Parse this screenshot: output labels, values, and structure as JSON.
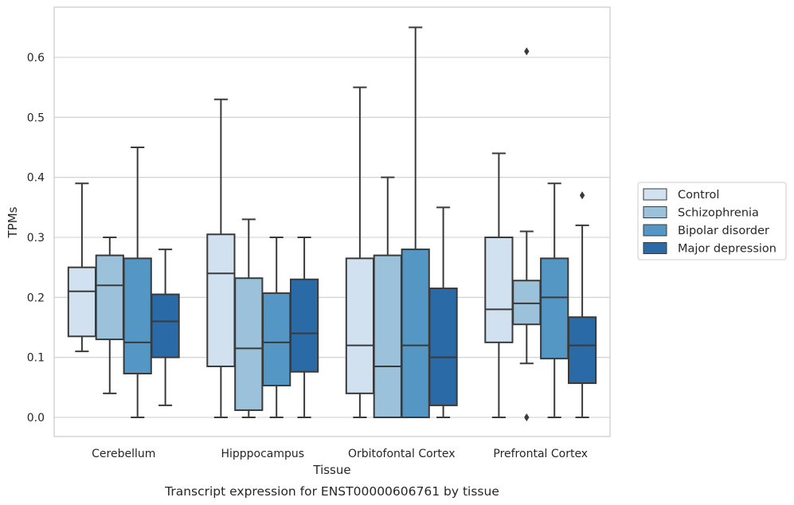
{
  "chart_data": {
    "type": "box",
    "caption": "Transcript expression for ENST00000606761 by tissue",
    "xlabel": "Tissue",
    "ylabel": "TPMs",
    "ylim": [
      -0.032,
      0.683
    ],
    "yticks": [
      0.0,
      0.1,
      0.2,
      0.3,
      0.4,
      0.5,
      0.6
    ],
    "ytick_labels": [
      "0.0",
      "0.1",
      "0.2",
      "0.3",
      "0.4",
      "0.5",
      "0.6"
    ],
    "grid": "horizontal",
    "legend_placement": "right-outside",
    "categories": [
      "Cerebellum",
      "Hipppocampus",
      "Orbitofontal Cortex",
      "Prefrontal Cortex"
    ],
    "series": [
      {
        "name": "Control",
        "color": "#d1e1f0",
        "boxes": [
          {
            "whislo": 0.11,
            "q1": 0.135,
            "med": 0.21,
            "q3": 0.25,
            "whishi": 0.39,
            "fliers": []
          },
          {
            "whislo": 0.0,
            "q1": 0.085,
            "med": 0.24,
            "q3": 0.305,
            "whishi": 0.53,
            "fliers": []
          },
          {
            "whislo": 0.0,
            "q1": 0.04,
            "med": 0.12,
            "q3": 0.265,
            "whishi": 0.55,
            "fliers": []
          },
          {
            "whislo": 0.0,
            "q1": 0.125,
            "med": 0.18,
            "q3": 0.3,
            "whishi": 0.44,
            "fliers": []
          }
        ]
      },
      {
        "name": "Schizophrenia",
        "color": "#9bc2da",
        "boxes": [
          {
            "whislo": 0.04,
            "q1": 0.13,
            "med": 0.22,
            "q3": 0.27,
            "whishi": 0.3,
            "fliers": []
          },
          {
            "whislo": 0.0,
            "q1": 0.012,
            "med": 0.115,
            "q3": 0.232,
            "whishi": 0.33,
            "fliers": []
          },
          {
            "whislo": 0.0,
            "q1": 0.0,
            "med": 0.085,
            "q3": 0.27,
            "whishi": 0.4,
            "fliers": []
          },
          {
            "whislo": 0.09,
            "q1": 0.155,
            "med": 0.19,
            "q3": 0.228,
            "whishi": 0.31,
            "fliers": [
              0.61,
              0.0
            ]
          }
        ]
      },
      {
        "name": "Bipolar disorder",
        "color": "#5497c4",
        "boxes": [
          {
            "whislo": 0.0,
            "q1": 0.073,
            "med": 0.125,
            "q3": 0.265,
            "whishi": 0.45,
            "fliers": []
          },
          {
            "whislo": 0.0,
            "q1": 0.053,
            "med": 0.125,
            "q3": 0.207,
            "whishi": 0.3,
            "fliers": []
          },
          {
            "whislo": 0.0,
            "q1": 0.0,
            "med": 0.12,
            "q3": 0.28,
            "whishi": 0.65,
            "fliers": []
          },
          {
            "whislo": 0.0,
            "q1": 0.098,
            "med": 0.2,
            "q3": 0.265,
            "whishi": 0.39,
            "fliers": []
          }
        ]
      },
      {
        "name": "Major depression",
        "color": "#2a6aa6",
        "boxes": [
          {
            "whislo": 0.02,
            "q1": 0.1,
            "med": 0.16,
            "q3": 0.205,
            "whishi": 0.28,
            "fliers": []
          },
          {
            "whislo": 0.0,
            "q1": 0.076,
            "med": 0.14,
            "q3": 0.23,
            "whishi": 0.3,
            "fliers": []
          },
          {
            "whislo": 0.0,
            "q1": 0.02,
            "med": 0.1,
            "q3": 0.215,
            "whishi": 0.35,
            "fliers": []
          },
          {
            "whislo": 0.0,
            "q1": 0.057,
            "med": 0.12,
            "q3": 0.167,
            "whishi": 0.32,
            "fliers": [
              0.37
            ]
          }
        ]
      }
    ]
  }
}
